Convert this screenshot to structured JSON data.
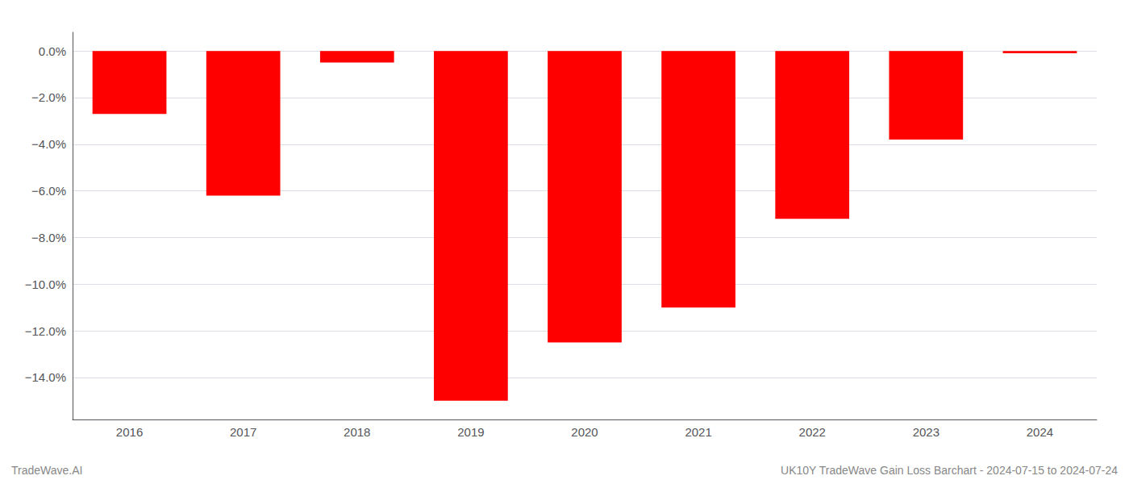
{
  "chart_data": {
    "type": "bar",
    "categories": [
      "2016",
      "2017",
      "2018",
      "2019",
      "2020",
      "2021",
      "2022",
      "2023",
      "2024"
    ],
    "values": [
      -0.027,
      -0.062,
      -0.005,
      -0.15,
      -0.125,
      -0.11,
      -0.072,
      -0.038,
      -0.001
    ],
    "color": "#ff0000",
    "ylim": [
      -0.158,
      0.008
    ],
    "yticks": [
      {
        "value": 0.0,
        "label": "0.0%"
      },
      {
        "value": -0.02,
        "label": "−2.0%"
      },
      {
        "value": -0.04,
        "label": "−4.0%"
      },
      {
        "value": -0.06,
        "label": "−6.0%"
      },
      {
        "value": -0.08,
        "label": "−8.0%"
      },
      {
        "value": -0.1,
        "label": "−10.0%"
      },
      {
        "value": -0.12,
        "label": "−12.0%"
      },
      {
        "value": -0.14,
        "label": "−14.0%"
      }
    ],
    "grid": true,
    "annotations": [
      "TradeWave.AI",
      "UK10Y TradeWave Gain Loss Barchart - 2024-07-15 to 2024-07-24"
    ]
  }
}
